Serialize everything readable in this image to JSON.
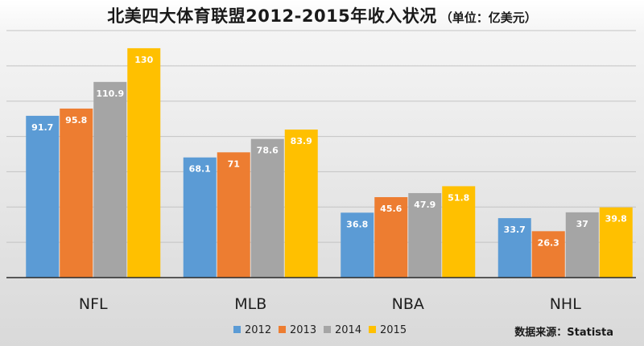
{
  "chart_data": {
    "type": "bar",
    "title": "北美四大体育联盟2012-2015年收入状况",
    "subtitle": "（单位：亿美元）",
    "categories": [
      "NFL",
      "MLB",
      "NBA",
      "NHL"
    ],
    "series": [
      {
        "name": "2012",
        "color": "#5b9bd5",
        "values": [
          91.7,
          68.1,
          36.8,
          33.7
        ]
      },
      {
        "name": "2013",
        "color": "#ed7d31",
        "values": [
          95.8,
          71,
          45.6,
          26.3
        ]
      },
      {
        "name": "2014",
        "color": "#a5a5a5",
        "values": [
          110.9,
          78.6,
          47.9,
          37
        ]
      },
      {
        "name": "2015",
        "color": "#ffc000",
        "values": [
          130,
          83.9,
          51.8,
          39.8
        ]
      }
    ],
    "ylim": [
      0,
      140
    ],
    "yticks": [
      0,
      20,
      40,
      60,
      80,
      100,
      120,
      140
    ],
    "grid": true,
    "legend_position": "bottom-center",
    "source": "数据来源：Statista"
  }
}
